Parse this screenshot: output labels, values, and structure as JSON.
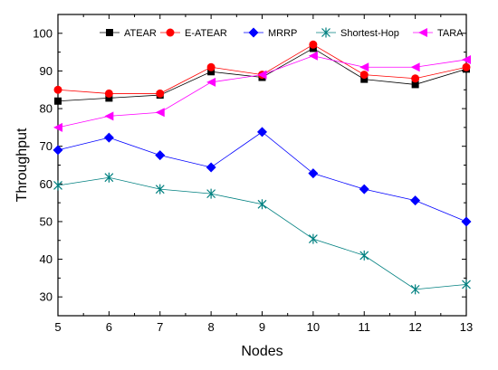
{
  "chart_data": {
    "type": "line",
    "title": "",
    "xlabel": "Nodes",
    "ylabel": "Throughput",
    "x": [
      5,
      6,
      7,
      8,
      9,
      10,
      11,
      12,
      13
    ],
    "xlim": [
      5,
      13
    ],
    "ylim": [
      25,
      105
    ],
    "xticks": [
      "5",
      "6",
      "7",
      "8",
      "9",
      "10",
      "11",
      "12",
      "13"
    ],
    "yticks": [
      "30",
      "40",
      "50",
      "60",
      "70",
      "80",
      "90",
      "100"
    ],
    "grid": false,
    "legend_position": "top-right",
    "series": [
      {
        "name": "ATEAR",
        "color": "#000000",
        "marker": "square",
        "values": [
          82,
          82.8,
          83.6,
          89.8,
          88.3,
          96.0,
          87.8,
          86.4,
          90.5
        ]
      },
      {
        "name": "E-ATEAR",
        "color": "#ff0000",
        "marker": "circle",
        "values": [
          85,
          84.0,
          84.0,
          91.0,
          89.0,
          97.0,
          89.0,
          88.0,
          91.0
        ]
      },
      {
        "name": "MRRP",
        "color": "#0000ff",
        "marker": "diamond",
        "values": [
          69,
          72.3,
          67.6,
          64.4,
          73.8,
          62.8,
          58.6,
          55.6,
          50.0
        ]
      },
      {
        "name": "Shortest-Hop",
        "color": "#008080",
        "marker": "star",
        "values": [
          59.6,
          61.7,
          58.6,
          57.4,
          54.6,
          45.4,
          41.0,
          32.0,
          33.3
        ]
      },
      {
        "name": "TARA",
        "color": "#ff00ff",
        "marker": "left-triangle",
        "values": [
          75,
          78.0,
          79.0,
          87.0,
          89.0,
          94.0,
          91.0,
          91.0,
          93.0
        ]
      }
    ]
  }
}
